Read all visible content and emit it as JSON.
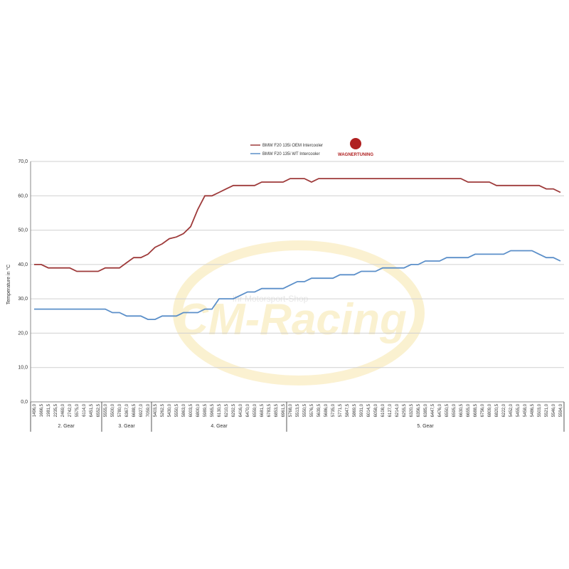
{
  "chart_data": {
    "type": "line",
    "y_label": "Temperature in °C",
    "logo_text": "WAGNERTUNING",
    "watermark": {
      "title": "CM-Racing",
      "subtitle": "Ihr Motorsport-Shop"
    },
    "category_groups": [
      {
        "label": "2. Gear",
        "categories": [
          "1496,0",
          "1666,5",
          "1981,5",
          "2235,5",
          "2469,0",
          "2742,0",
          "5575,0",
          "6114,0",
          "6451,5",
          "6552,5"
        ]
      },
      {
        "label": "3. Gear",
        "categories": [
          "5555,0",
          "5500,0",
          "5780,0",
          "6367,0",
          "6688,5",
          "6927,0",
          "7059,0"
        ]
      },
      {
        "label": "4. Gear",
        "categories": [
          "5403,5",
          "5262,5",
          "5430,0",
          "5550,5",
          "5863,0",
          "6003,5",
          "6800,0",
          "5989,5",
          "5965,5",
          "6130,5",
          "6210,5",
          "6292,5",
          "6416,0",
          "6470,0",
          "6559,0",
          "6681,5",
          "6783,5",
          "6853,5",
          "6961,5"
        ]
      },
      {
        "label": "5. Gear",
        "categories": [
          "5768,0",
          "5513,5",
          "5550,5",
          "5576,5",
          "5639,5",
          "5686,0",
          "5735,0",
          "5771,5",
          "5847,5",
          "5869,5",
          "5931,0",
          "6014,5",
          "6058,0",
          "6108,0",
          "6127,0",
          "6214,0",
          "6255,5",
          "6320,5",
          "6356,5",
          "6385,0",
          "6447,5",
          "6476,0",
          "6550,5",
          "6595,0",
          "6630,5",
          "6655,0",
          "6688,5",
          "6756,0",
          "6809,0",
          "6820,5",
          "6222,0",
          "5452,0",
          "5455,0",
          "5458,0",
          "5486,5",
          "5503,0",
          "5521,0",
          "5546,0",
          "5594,0"
        ]
      }
    ],
    "series": [
      {
        "name": "BMW F20 135i OEM Intercooler",
        "color": "#9e3a3a",
        "values": [
          40,
          40,
          39,
          39,
          39,
          39,
          38,
          38,
          38,
          38,
          39,
          39,
          39,
          40.5,
          42,
          42,
          43,
          45,
          46,
          47.5,
          48,
          49,
          51,
          56,
          60,
          60,
          61,
          62,
          63,
          63,
          63,
          63,
          64,
          64,
          64,
          64,
          65,
          65,
          65,
          64,
          65,
          65,
          65,
          65,
          65,
          65,
          65,
          65,
          65,
          65,
          65,
          65,
          65,
          65,
          65,
          65,
          65,
          65,
          65,
          65,
          65,
          64,
          64,
          64,
          64,
          63,
          63,
          63,
          63,
          63,
          63,
          63,
          62,
          62,
          61
        ]
      },
      {
        "name": "BMW F20 135i WT Intercooler",
        "color": "#5b8fc9",
        "values": [
          27,
          27,
          27,
          27,
          27,
          27,
          27,
          27,
          27,
          27,
          27,
          26,
          26,
          25,
          25,
          25,
          24,
          24,
          25,
          25,
          25,
          26,
          26,
          26,
          27,
          27,
          30,
          30,
          30,
          31,
          32,
          32,
          33,
          33,
          33,
          33,
          34,
          35,
          35,
          36,
          36,
          36,
          36,
          37,
          37,
          37,
          38,
          38,
          38,
          39,
          39,
          39,
          39,
          40,
          40,
          41,
          41,
          41,
          42,
          42,
          42,
          42,
          43,
          43,
          43,
          43,
          43,
          44,
          44,
          44,
          44,
          43,
          42,
          42,
          41
        ]
      }
    ],
    "ylim": [
      0,
      70
    ],
    "yticks": [
      {
        "value": 0,
        "label": "0,0"
      },
      {
        "value": 10,
        "label": "10,0"
      },
      {
        "value": 20,
        "label": "20,0"
      },
      {
        "value": 30,
        "label": "30,0"
      },
      {
        "value": 40,
        "label": "40,0"
      },
      {
        "value": 50,
        "label": "50,0"
      },
      {
        "value": 60,
        "label": "60,0"
      },
      {
        "value": 70,
        "label": "70,0"
      }
    ],
    "grid": true
  }
}
